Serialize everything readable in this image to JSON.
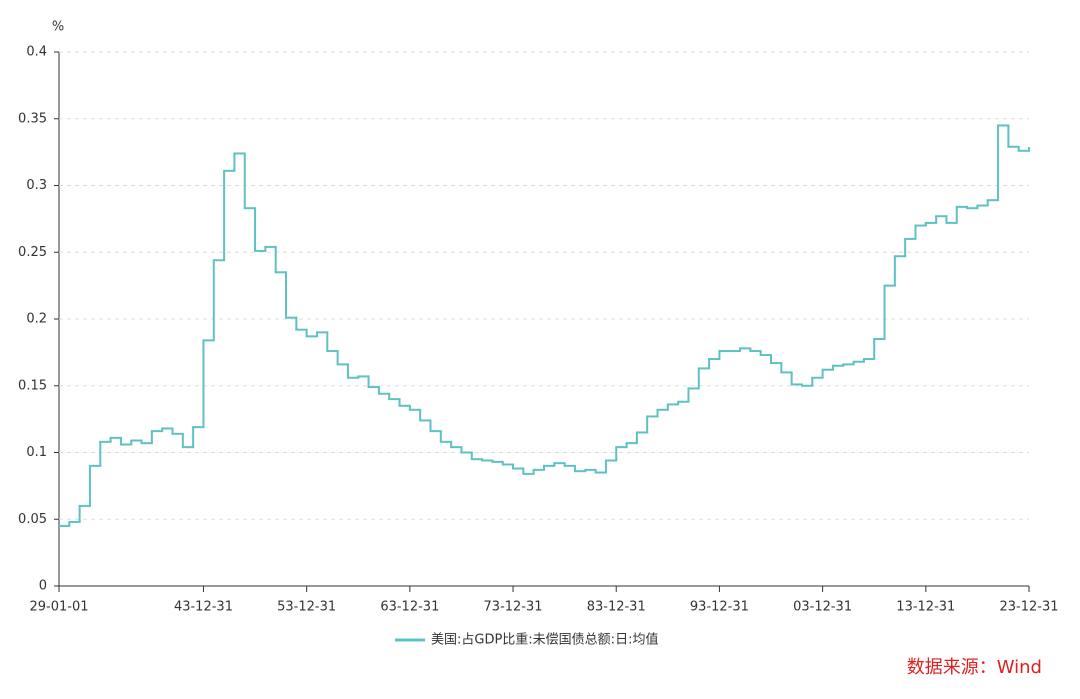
{
  "chart_data": {
    "type": "line",
    "step": true,
    "y_unit": "%",
    "source": "数据来源：Wind",
    "categories": [
      "29-01-01",
      null,
      null,
      null,
      null,
      null,
      null,
      null,
      null,
      null,
      null,
      null,
      null,
      null,
      "43-12-31",
      null,
      null,
      null,
      null,
      null,
      null,
      null,
      null,
      null,
      "53-12-31",
      null,
      null,
      null,
      null,
      null,
      null,
      null,
      null,
      null,
      "63-12-31",
      null,
      null,
      null,
      null,
      null,
      null,
      null,
      null,
      null,
      "73-12-31",
      null,
      null,
      null,
      null,
      null,
      null,
      null,
      null,
      null,
      "83-12-31",
      null,
      null,
      null,
      null,
      null,
      null,
      null,
      null,
      null,
      "93-12-31",
      null,
      null,
      null,
      null,
      null,
      null,
      null,
      null,
      null,
      "03-12-31",
      null,
      null,
      null,
      null,
      null,
      null,
      null,
      null,
      null,
      "13-12-31",
      null,
      null,
      null,
      null,
      null,
      null,
      null,
      null,
      null,
      "23-12-31"
    ],
    "series": [
      {
        "name": "美国:占GDP比重:未偿国债总额:日:均值",
        "color": "#5fc1c1",
        "values": [
          0.045,
          0.048,
          0.06,
          0.09,
          0.108,
          0.111,
          0.106,
          0.109,
          0.107,
          0.116,
          0.118,
          0.114,
          0.104,
          0.119,
          0.184,
          0.244,
          0.311,
          0.324,
          0.283,
          0.251,
          0.254,
          0.235,
          0.201,
          0.192,
          0.187,
          0.19,
          0.176,
          0.166,
          0.156,
          0.157,
          0.149,
          0.144,
          0.14,
          0.135,
          0.132,
          0.124,
          0.116,
          0.108,
          0.104,
          0.1,
          0.095,
          0.094,
          0.093,
          0.091,
          0.088,
          0.084,
          0.087,
          0.09,
          0.092,
          0.09,
          0.086,
          0.087,
          0.085,
          0.094,
          0.104,
          0.107,
          0.115,
          0.127,
          0.132,
          0.136,
          0.138,
          0.148,
          0.163,
          0.17,
          0.176,
          0.176,
          0.178,
          0.176,
          0.173,
          0.167,
          0.16,
          0.151,
          0.15,
          0.156,
          0.162,
          0.165,
          0.166,
          0.168,
          0.17,
          0.185,
          0.225,
          0.247,
          0.26,
          0.27,
          0.272,
          0.277,
          0.272,
          0.284,
          0.283,
          0.285,
          0.289,
          0.345,
          0.329,
          0.326,
          0.328
        ]
      }
    ],
    "ylim": [
      0,
      0.4
    ],
    "yticks": [
      0,
      0.05,
      0.1,
      0.15,
      0.2,
      0.25,
      0.3,
      0.35,
      0.4
    ],
    "grid": true
  }
}
